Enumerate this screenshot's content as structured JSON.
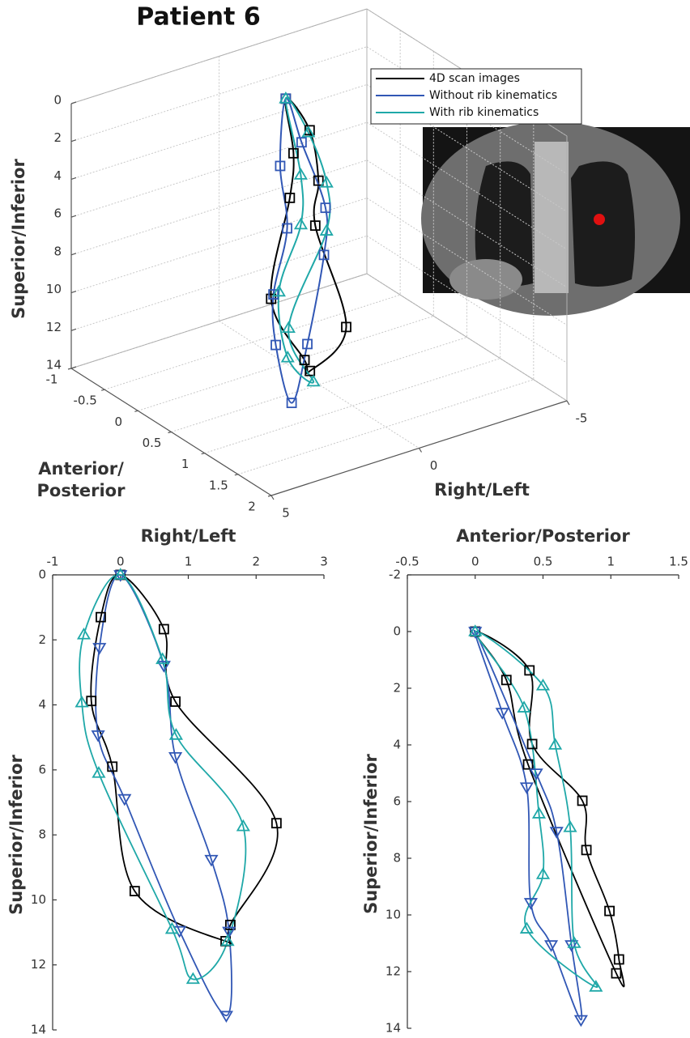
{
  "chart_data": [
    {
      "type": "line3d",
      "title": "Patient 6",
      "xlabel": "Right/Left",
      "ylabel": [
        "Anterior/",
        "Posterior"
      ],
      "zlabel": "Superior/Inferior",
      "xlim": [
        -5,
        5
      ],
      "xticks": [
        -5,
        0,
        5
      ],
      "ylim": [
        -1,
        2
      ],
      "yticks": [
        -1,
        -0.5,
        0,
        0.5,
        1,
        1.5,
        2
      ],
      "zlim": [
        0,
        14
      ],
      "zticks": [
        0,
        2,
        4,
        6,
        8,
        10,
        12,
        14
      ],
      "grid": true,
      "closed": true,
      "series": [
        {
          "name": "4D scan images",
          "color": "#000000",
          "marker": "square",
          "x": [
            0,
            0.64,
            0.81,
            2.3,
            1.62,
            1.55,
            0.21,
            -0.12,
            -0.43,
            -0.29
          ],
          "y": [
            0,
            0.4,
            0.42,
            0.8,
            1.0,
            1.05,
            1.0,
            0.39,
            0.3,
            0.23
          ],
          "z": [
            0,
            1.67,
            3.9,
            7.64,
            10.77,
            11.27,
            9.73,
            5.9,
            3.88,
            1.3
          ]
        },
        {
          "name": "Without rib kinematics",
          "color": "#3157b5",
          "marker": "square",
          "x": [
            0,
            0.64,
            0.81,
            1.34,
            1.6,
            1.56,
            0.87,
            0.06,
            -0.33,
            -0.31
          ],
          "y": [
            0,
            0.2,
            0.38,
            0.41,
            0.56,
            0.78,
            0.71,
            0.6,
            0.45,
            0.1
          ],
          "z": [
            0,
            2.79,
            5.6,
            8.76,
            10.97,
            13.56,
            10.95,
            6.89,
            4.93,
            2.24
          ]
        },
        {
          "name": "With rib kinematics",
          "color": "#1fa8a8",
          "marker": "triangle-up",
          "x": [
            0,
            0.62,
            0.82,
            1.81,
            1.58,
            1.07,
            0.76,
            -0.32,
            -0.57,
            -0.54
          ],
          "y": [
            0,
            0.5,
            0.59,
            0.7,
            0.73,
            0.89,
            0.38,
            0.47,
            0.36,
            0.1
          ],
          "z": [
            0,
            2.6,
            4.93,
            7.74,
            11.27,
            12.44,
            10.9,
            6.1,
            3.93,
            1.84
          ]
        }
      ]
    },
    {
      "type": "line",
      "xlabel": "Right/Left",
      "ylabel": "Superior/Inferior",
      "xlim": [
        -1,
        3
      ],
      "xticks": [
        -1,
        0,
        1,
        2,
        3
      ],
      "ylim": [
        0,
        14
      ],
      "yticks": [
        0,
        2,
        4,
        6,
        8,
        10,
        12,
        14
      ],
      "y_reversed": true,
      "closed": true,
      "series": [
        {
          "color": "#000000",
          "marker": "square",
          "x": [
            0,
            0.64,
            0.81,
            2.3,
            1.62,
            1.55,
            0.21,
            -0.12,
            -0.43,
            -0.29
          ],
          "y": [
            0,
            1.67,
            3.9,
            7.64,
            10.77,
            11.27,
            9.73,
            5.9,
            3.88,
            1.3
          ]
        },
        {
          "color": "#3157b5",
          "marker": "triangle-down",
          "x": [
            0,
            0.64,
            0.81,
            1.34,
            1.6,
            1.56,
            0.87,
            0.06,
            -0.33,
            -0.31
          ],
          "y": [
            0,
            2.79,
            5.6,
            8.76,
            10.97,
            13.56,
            10.95,
            6.89,
            4.93,
            2.24
          ]
        },
        {
          "color": "#1fa8a8",
          "marker": "triangle-up",
          "x": [
            0,
            0.62,
            0.82,
            1.81,
            1.58,
            1.07,
            0.76,
            -0.32,
            -0.57,
            -0.54
          ],
          "y": [
            0,
            2.6,
            4.93,
            7.74,
            11.27,
            12.44,
            10.9,
            6.1,
            3.93,
            1.84
          ]
        }
      ]
    },
    {
      "type": "line",
      "xlabel": "Anterior/Posterior",
      "ylabel": "Superior/Inferior",
      "xlim": [
        -0.5,
        1.5
      ],
      "xticks": [
        -0.5,
        0,
        0.5,
        1,
        1.5
      ],
      "ylim": [
        -2,
        14
      ],
      "yticks": [
        -2,
        0,
        2,
        4,
        6,
        8,
        10,
        12,
        14
      ],
      "y_reversed": true,
      "closed": true,
      "series": [
        {
          "color": "#000000",
          "marker": "square",
          "x": [
            0,
            0.4,
            0.42,
            0.79,
            0.82,
            0.99,
            1.06,
            1.04,
            0.39,
            0.23
          ],
          "y": [
            0,
            1.37,
            3.97,
            5.97,
            7.71,
            9.86,
            11.57,
            12.06,
            4.69,
            1.71
          ]
        },
        {
          "color": "#3157b5",
          "marker": "triangle-down",
          "x": [
            0,
            0.2,
            0.38,
            0.41,
            0.56,
            0.78,
            0.71,
            0.6,
            0.45
          ],
          "y": [
            0,
            2.86,
            5.49,
            9.57,
            11.06,
            13.7,
            11.06,
            7.06,
            5.0
          ]
        },
        {
          "color": "#1fa8a8",
          "marker": "triangle-up",
          "x": [
            0,
            0.5,
            0.59,
            0.7,
            0.73,
            0.89,
            0.38,
            0.5,
            0.47,
            0.36
          ],
          "y": [
            0,
            1.91,
            4.0,
            6.91,
            11.0,
            12.54,
            10.49,
            8.57,
            6.43,
            2.69
          ]
        }
      ]
    }
  ]
}
